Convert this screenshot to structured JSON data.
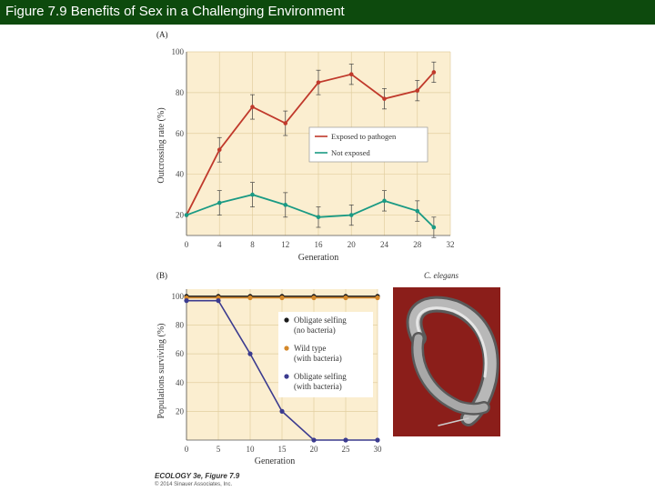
{
  "title": "Figure 7.9 Benefits of Sex in a Challenging Environment",
  "footer": {
    "credit": "ECOLOGY 3e, Figure 7.9",
    "copyright": "© 2014 Sinauer Associates, Inc."
  },
  "photo": {
    "label": "C. elegans",
    "bg_color": "#8b1e1a"
  },
  "chart_data": [
    {
      "type": "line",
      "panel_label": "(A)",
      "xlabel": "Generation",
      "ylabel": "Outcrossing rate (%)",
      "xlim": [
        0,
        32
      ],
      "ylim": [
        10,
        100
      ],
      "xticks": [
        0,
        4,
        8,
        12,
        16,
        20,
        24,
        28,
        32
      ],
      "yticks": [
        20,
        40,
        60,
        80,
        100
      ],
      "grid": true,
      "legend_position": "center-right",
      "background": "#fbeed0",
      "series": [
        {
          "name": "Exposed to pathogen",
          "color": "#c0392b",
          "x": [
            0,
            4,
            8,
            12,
            16,
            20,
            24,
            28,
            30
          ],
          "y": [
            20,
            52,
            73,
            65,
            85,
            89,
            77,
            81,
            90
          ],
          "err": [
            0,
            6,
            6,
            6,
            6,
            5,
            5,
            5,
            5
          ]
        },
        {
          "name": "Not exposed",
          "color": "#1a9a84",
          "x": [
            0,
            4,
            8,
            12,
            16,
            20,
            24,
            28,
            30
          ],
          "y": [
            20,
            26,
            30,
            25,
            19,
            20,
            27,
            22,
            14
          ],
          "err": [
            0,
            6,
            6,
            6,
            5,
            5,
            5,
            5,
            5
          ]
        }
      ]
    },
    {
      "type": "line",
      "panel_label": "(B)",
      "xlabel": "Generation",
      "ylabel": "Populations surviving (%)",
      "xlim": [
        0,
        30
      ],
      "ylim": [
        0,
        105
      ],
      "xticks": [
        0,
        5,
        10,
        15,
        20,
        25,
        30
      ],
      "yticks": [
        20,
        40,
        60,
        80,
        100
      ],
      "grid": true,
      "legend_position": "right",
      "background": "#fbeed0",
      "series": [
        {
          "name_lines": [
            "Obligate selfing",
            "(no bacteria)"
          ],
          "color": "#1a1a1a",
          "x": [
            0,
            5,
            10,
            15,
            20,
            25,
            30
          ],
          "y": [
            100,
            100,
            100,
            100,
            100,
            100,
            100
          ]
        },
        {
          "name_lines": [
            "Wild type",
            "(with bacteria)"
          ],
          "color": "#d4882a",
          "x": [
            0,
            5,
            10,
            15,
            20,
            25,
            30
          ],
          "y": [
            99,
            99,
            99,
            99,
            99,
            99,
            99
          ]
        },
        {
          "name_lines": [
            "Obligate selfing",
            "(with bacteria)"
          ],
          "color": "#3b3b8f",
          "x": [
            0,
            5,
            10,
            15,
            20,
            25,
            30
          ],
          "y": [
            97,
            97,
            60,
            20,
            0,
            0,
            0
          ]
        }
      ]
    }
  ]
}
